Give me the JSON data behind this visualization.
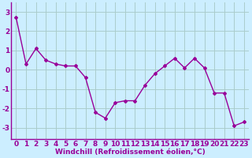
{
  "x": [
    0,
    1,
    2,
    3,
    4,
    5,
    6,
    7,
    8,
    9,
    10,
    11,
    12,
    13,
    14,
    15,
    16,
    17,
    18,
    19,
    20,
    21,
    22,
    23
  ],
  "y": [
    2.7,
    0.3,
    1.1,
    0.5,
    0.3,
    0.2,
    0.2,
    -0.4,
    -2.2,
    -2.5,
    -1.7,
    -1.6,
    -1.6,
    -0.8,
    -0.2,
    0.2,
    0.6,
    0.1,
    0.6,
    0.1,
    -1.2,
    -1.2,
    -2.9,
    -2.7
  ],
  "line_color": "#990099",
  "marker": "D",
  "marker_size": 2.0,
  "background_color": "#cceeff",
  "grid_color": "#aacccc",
  "xlabel": "Windchill (Refroidissement éolien,°C)",
  "xlabel_fontsize": 6.5,
  "xlabel_fontweight": "bold",
  "yticks": [
    -3,
    -2,
    -1,
    0,
    1,
    2,
    3
  ],
  "ylim": [
    -3.6,
    3.5
  ],
  "xlim": [
    -0.5,
    23.5
  ],
  "tick_fontsize": 6.5,
  "tick_fontweight": "bold",
  "linewidth": 1.0
}
